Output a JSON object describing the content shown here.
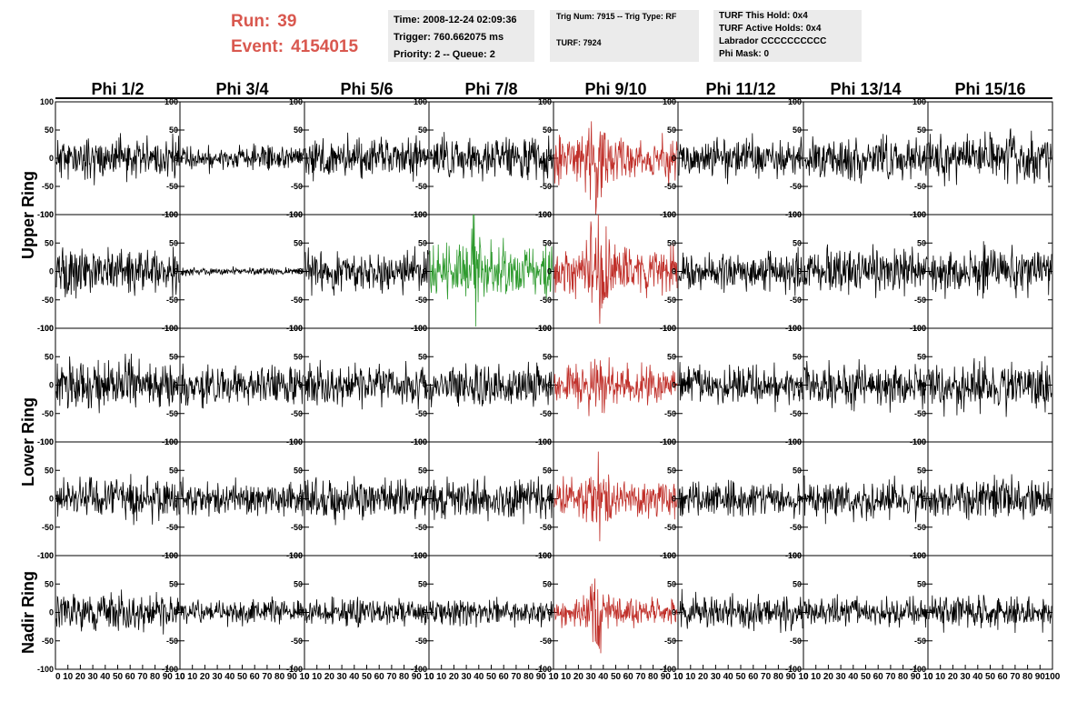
{
  "header": {
    "run_label": "Run:",
    "run_value": "39",
    "event_label": "Event:",
    "event_value": "4154015",
    "accent_color": "#d9584f",
    "time_line": "Time: 2008-12-24 02:09:36",
    "trigger_line": "Trigger: 760.662075 ms",
    "priority_line": "Priority: 2 -- Queue: 2",
    "trig_line": "Trig Num: 7915 -- Trig Type: RF",
    "turf_line": "TURF: 7924",
    "turf_hold_line": "TURF This Hold: 0x4",
    "turf_active_line": "TURF Active Holds: 0x4",
    "labrador_line": "Labrador CCCCCCCCCC",
    "phi_mask_line": "Phi Mask: 0",
    "box_color": "#ebebeb"
  },
  "chart_data": {
    "type": "line",
    "columns": [
      "Phi 1/2",
      "Phi 3/4",
      "Phi 5/6",
      "Phi 7/8",
      "Phi 9/10",
      "Phi 11/12",
      "Phi 13/14",
      "Phi 15/16"
    ],
    "ring_labels": [
      {
        "text": "Upper Ring",
        "rows": [
          0,
          1
        ]
      },
      {
        "text": "Lower Ring",
        "rows": [
          2,
          3
        ]
      },
      {
        "text": "Nadir Ring",
        "rows": [
          4
        ]
      }
    ],
    "ylim": [
      -100,
      100
    ],
    "xlim": [
      0,
      100
    ],
    "yticks": [
      100,
      50,
      0,
      -50,
      -100
    ],
    "xticks": [
      0,
      10,
      20,
      30,
      40,
      50,
      60,
      70,
      80,
      90,
      100
    ],
    "xticks_per_panel": [
      [
        "0",
        "10",
        "20",
        "30",
        "40",
        "50",
        "60",
        "70",
        "80",
        "90",
        "10"
      ],
      [
        "0",
        "10",
        "20",
        "30",
        "40",
        "50",
        "60",
        "70",
        "80",
        "90",
        "10"
      ],
      [
        "0",
        "10",
        "20",
        "30",
        "40",
        "50",
        "60",
        "70",
        "80",
        "90",
        "10"
      ],
      [
        "0",
        "10",
        "20",
        "30",
        "40",
        "50",
        "60",
        "70",
        "80",
        "90",
        "10"
      ],
      [
        "0",
        "10",
        "20",
        "30",
        "40",
        "50",
        "60",
        "70",
        "80",
        "90",
        "10"
      ],
      [
        "0",
        "10",
        "20",
        "30",
        "40",
        "50",
        "60",
        "70",
        "80",
        "90",
        "10"
      ],
      [
        "0",
        "10",
        "20",
        "30",
        "40",
        "50",
        "60",
        "70",
        "80",
        "90",
        "10"
      ],
      [
        "0",
        "10",
        "20",
        "30",
        "40",
        "50",
        "60",
        "70",
        "80",
        "90",
        "100"
      ]
    ],
    "colors": {
      "normal": "#000000",
      "triggered": "#c0302a",
      "highlight": "#2e9a2e"
    },
    "panels": [
      [
        {
          "amplitude": 22,
          "color": "normal",
          "burst": 0,
          "seed": 11
        },
        {
          "amplitude": 13,
          "color": "normal",
          "burst": 0,
          "seed": 12
        },
        {
          "amplitude": 22,
          "color": "normal",
          "burst": 0,
          "seed": 13
        },
        {
          "amplitude": 22,
          "color": "normal",
          "burst": 0,
          "seed": 14
        },
        {
          "amplitude": 24,
          "color": "triggered",
          "burst": 45,
          "seed": 15
        },
        {
          "amplitude": 20,
          "color": "normal",
          "burst": 0,
          "seed": 16
        },
        {
          "amplitude": 22,
          "color": "normal",
          "burst": 0,
          "seed": 17
        },
        {
          "amplitude": 24,
          "color": "normal",
          "burst": 0,
          "seed": 18
        }
      ],
      [
        {
          "amplitude": 24,
          "color": "normal",
          "burst": 0,
          "seed": 21
        },
        {
          "amplitude": 4,
          "color": "normal",
          "burst": 0,
          "seed": 22
        },
        {
          "amplitude": 22,
          "color": "normal",
          "burst": 0,
          "seed": 23
        },
        {
          "amplitude": 28,
          "color": "highlight",
          "burst": 30,
          "seed": 24
        },
        {
          "amplitude": 24,
          "color": "triggered",
          "burst": 50,
          "seed": 25
        },
        {
          "amplitude": 20,
          "color": "normal",
          "burst": 0,
          "seed": 26
        },
        {
          "amplitude": 22,
          "color": "normal",
          "burst": 0,
          "seed": 27
        },
        {
          "amplitude": 24,
          "color": "normal",
          "burst": 0,
          "seed": 28
        }
      ],
      [
        {
          "amplitude": 26,
          "color": "normal",
          "burst": 0,
          "seed": 31
        },
        {
          "amplitude": 20,
          "color": "normal",
          "burst": 0,
          "seed": 32
        },
        {
          "amplitude": 22,
          "color": "normal",
          "burst": 0,
          "seed": 33
        },
        {
          "amplitude": 22,
          "color": "normal",
          "burst": 0,
          "seed": 34
        },
        {
          "amplitude": 20,
          "color": "triggered",
          "burst": 18,
          "seed": 35
        },
        {
          "amplitude": 22,
          "color": "normal",
          "burst": 0,
          "seed": 36
        },
        {
          "amplitude": 24,
          "color": "normal",
          "burst": 0,
          "seed": 37
        },
        {
          "amplitude": 26,
          "color": "normal",
          "burst": 0,
          "seed": 38
        }
      ],
      [
        {
          "amplitude": 22,
          "color": "normal",
          "burst": 0,
          "seed": 41
        },
        {
          "amplitude": 18,
          "color": "normal",
          "burst": 0,
          "seed": 42
        },
        {
          "amplitude": 22,
          "color": "normal",
          "burst": 0,
          "seed": 43
        },
        {
          "amplitude": 22,
          "color": "normal",
          "burst": 0,
          "seed": 44
        },
        {
          "amplitude": 22,
          "color": "triggered",
          "burst": 25,
          "seed": 45
        },
        {
          "amplitude": 18,
          "color": "normal",
          "burst": 0,
          "seed": 46
        },
        {
          "amplitude": 20,
          "color": "normal",
          "burst": 0,
          "seed": 47
        },
        {
          "amplitude": 22,
          "color": "normal",
          "burst": 0,
          "seed": 48
        }
      ],
      [
        {
          "amplitude": 20,
          "color": "normal",
          "burst": 0,
          "seed": 51
        },
        {
          "amplitude": 14,
          "color": "normal",
          "burst": 0,
          "seed": 52
        },
        {
          "amplitude": 14,
          "color": "normal",
          "burst": 0,
          "seed": 53
        },
        {
          "amplitude": 14,
          "color": "normal",
          "burst": 0,
          "seed": 54
        },
        {
          "amplitude": 14,
          "color": "triggered",
          "burst": 35,
          "seed": 55
        },
        {
          "amplitude": 18,
          "color": "normal",
          "burst": 0,
          "seed": 56
        },
        {
          "amplitude": 16,
          "color": "normal",
          "burst": 0,
          "seed": 57
        },
        {
          "amplitude": 18,
          "color": "normal",
          "burst": 0,
          "seed": 58
        }
      ]
    ]
  }
}
